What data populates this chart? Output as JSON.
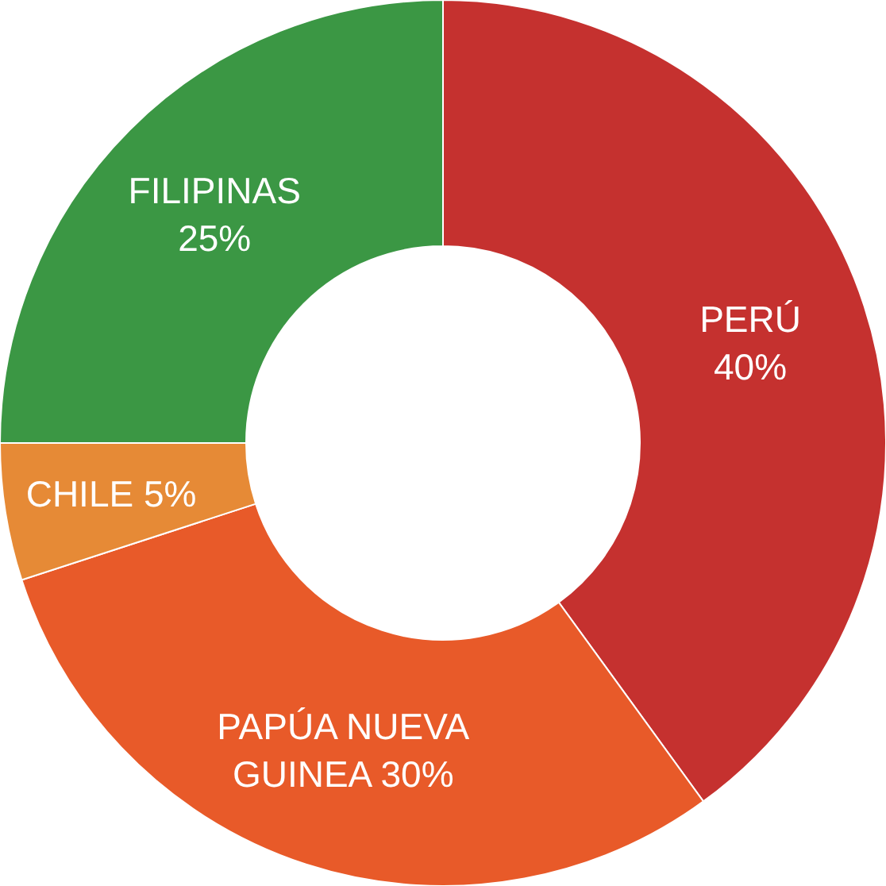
{
  "chart_data": {
    "type": "donut",
    "categories": [
      "PERÚ",
      "PAPÚA NUEVA GUINEA",
      "CHILE",
      "FILIPINAS"
    ],
    "values": [
      40,
      30,
      5,
      25
    ],
    "colors": [
      "#c5312f",
      "#e85a29",
      "#e68a36",
      "#3b9744"
    ],
    "value_labels": [
      "40%",
      "30%",
      "5%",
      "25%"
    ]
  }
}
